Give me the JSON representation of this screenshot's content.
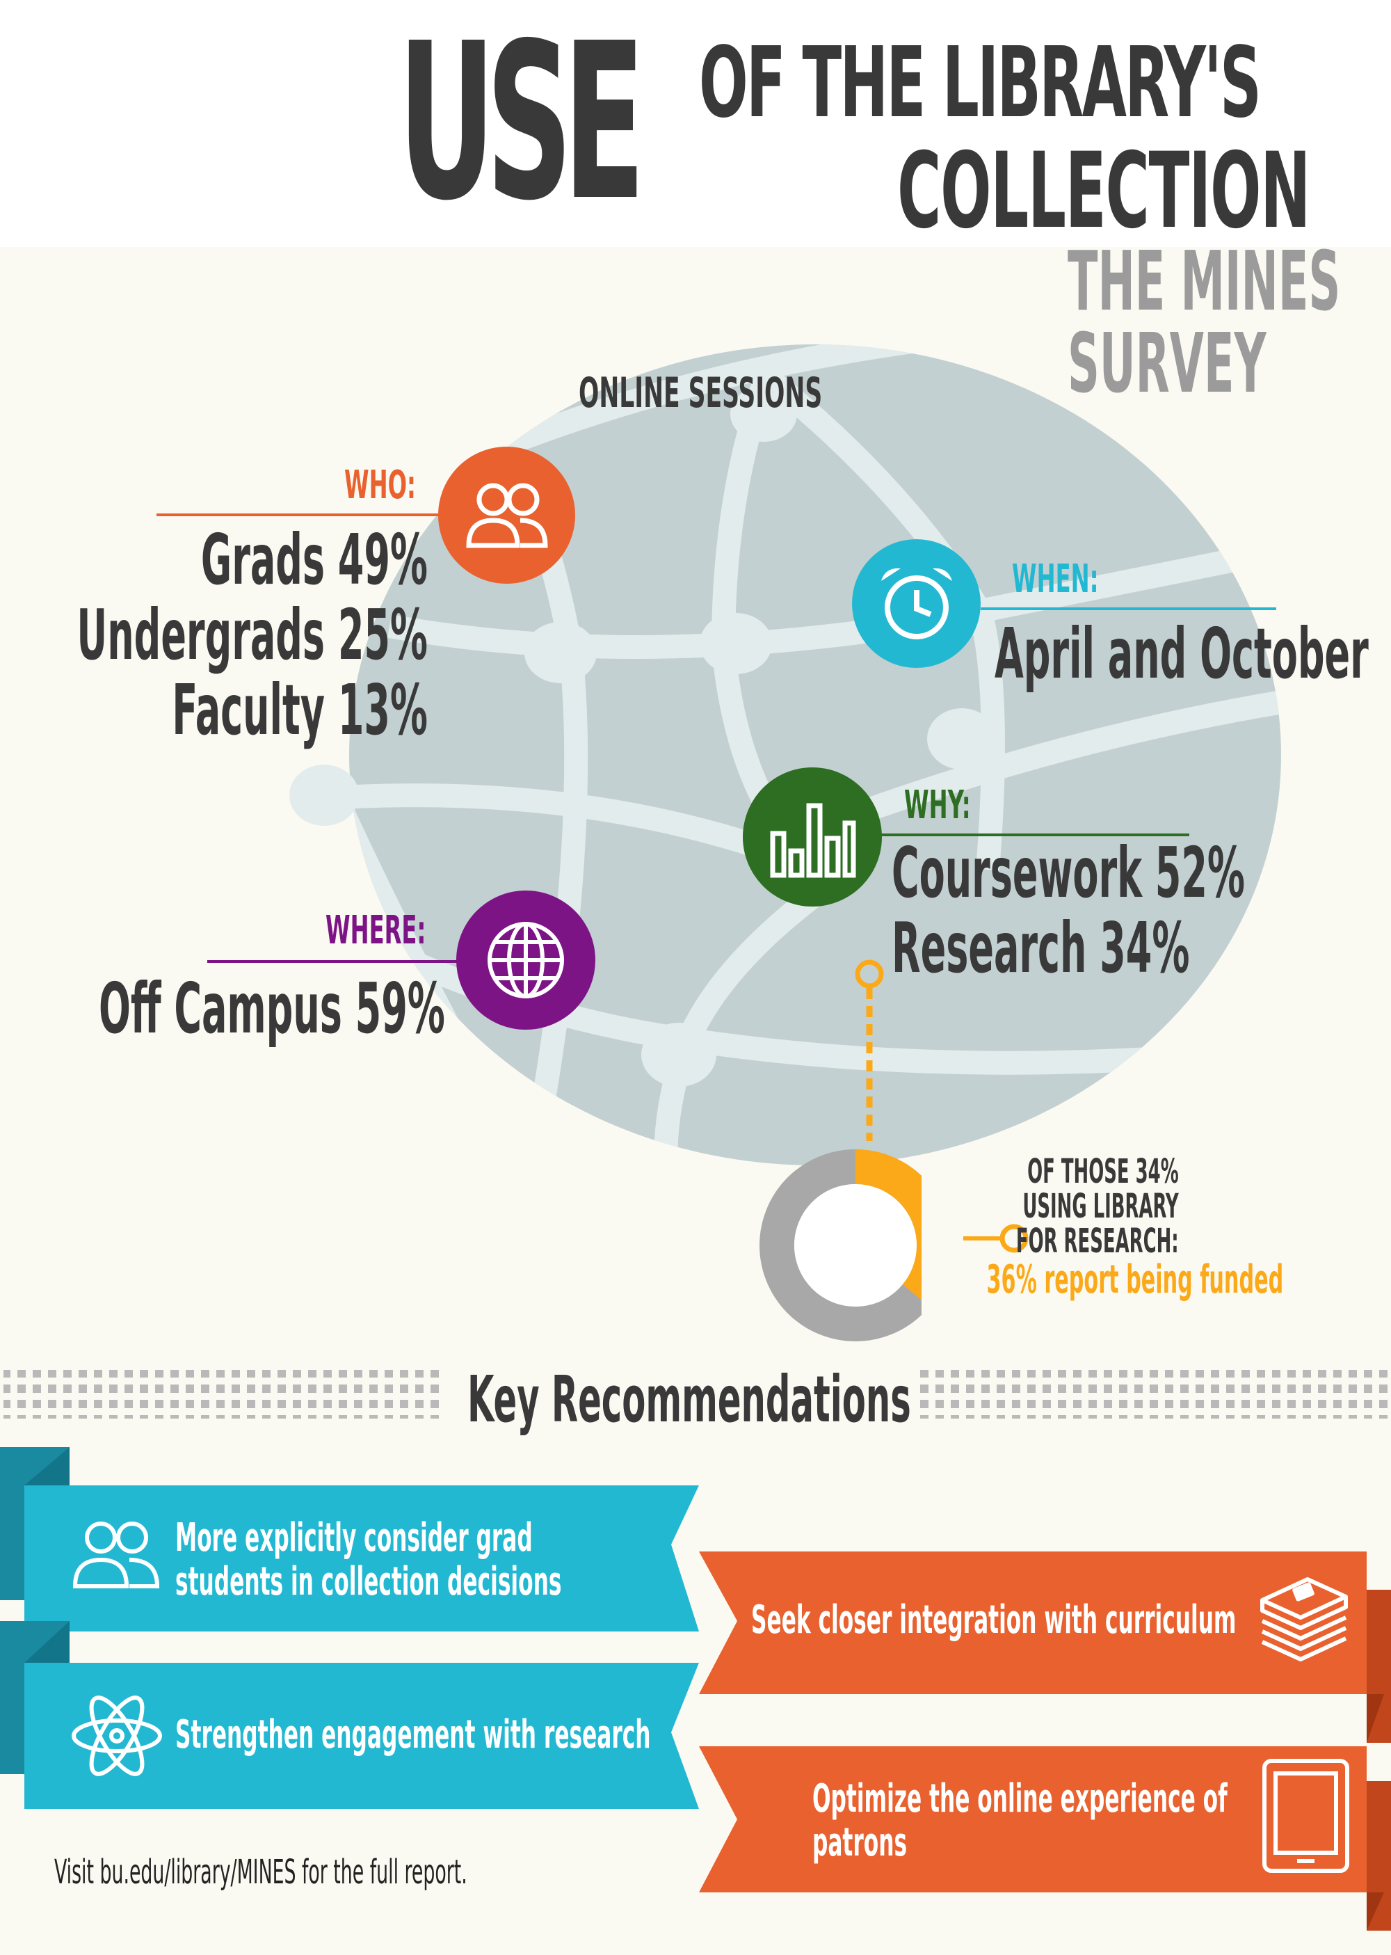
{
  "title": {
    "use": "USE",
    "line1": "OF THE LIBRARY'S",
    "line2": "COLLECTION",
    "subtitle_line1": "THE MINES",
    "subtitle_line2": "SURVEY"
  },
  "globe": {
    "heading": "ONLINE SESSIONS"
  },
  "who": {
    "label": "WHO:",
    "lines": [
      "Grads 49%",
      "Undergrads 25%",
      "Faculty 13%"
    ],
    "icon": "people-icon",
    "color": "#e8612f"
  },
  "when": {
    "label": "WHEN:",
    "value": "April and October",
    "icon": "alarm-clock-icon",
    "color": "#23b8d2"
  },
  "why": {
    "label": "WHY:",
    "lines": [
      "Coursework 52%",
      "Research 34%"
    ],
    "icon": "bar-chart-icon",
    "color": "#2d6e23"
  },
  "where": {
    "label": "WHERE:",
    "value": "Off Campus 59%",
    "icon": "globe-icon",
    "color": "#7d1486"
  },
  "funded": {
    "lines": [
      "OF THOSE 34%",
      "USING LIBRARY",
      "FOR RESEARCH:"
    ],
    "highlight": "36% report being funded",
    "fraction": 0.36,
    "color": "#fba919",
    "rest_color": "#a8a8a8"
  },
  "recommendations": {
    "title": "Key Recommendations",
    "items": [
      {
        "text_lines": [
          "More explicitly consider grad",
          "students in collection decisions"
        ],
        "icon": "people-icon",
        "color": "#23b8d2"
      },
      {
        "text_lines": [
          "Seek closer integration with curriculum"
        ],
        "icon": "books-icon",
        "color": "#e8612f"
      },
      {
        "text_lines": [
          "Strengthen engagement with research"
        ],
        "icon": "atom-icon",
        "color": "#23b8d2"
      },
      {
        "text_lines": [
          "Optimize the online experience of",
          "patrons"
        ],
        "icon": "tablet-icon",
        "color": "#e8612f"
      }
    ]
  },
  "footer": "Visit bu.edu/library/MINES for the full report."
}
